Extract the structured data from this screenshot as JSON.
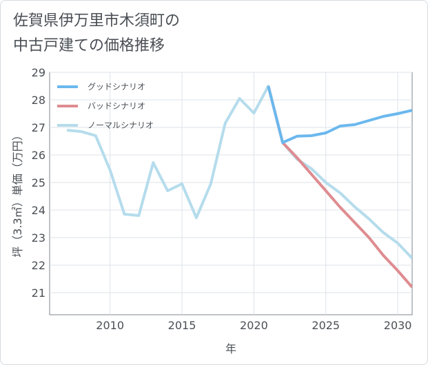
{
  "title_lines": [
    "佐賀県伊万里市木須町の",
    "中古戸建ての価格推移"
  ],
  "chart_data": {
    "type": "line",
    "title": "佐賀県伊万里市木須町の中古戸建ての価格推移",
    "xlabel": "年",
    "ylabel": "坪（3.3㎡）単価（万円）",
    "xlim": [
      2005.8,
      2031.0
    ],
    "ylim": [
      20.2,
      29.0
    ],
    "xticks": [
      2010,
      2015,
      2020,
      2025,
      2030
    ],
    "yticks": [
      21,
      22,
      23,
      24,
      25,
      26,
      27,
      28,
      29
    ],
    "legend_position": "top-left",
    "series": [
      {
        "name": "グッドシナリオ",
        "color": "#6bb8ee",
        "x": [
          2021,
          2022,
          2023,
          2024,
          2025,
          2026,
          2027,
          2028,
          2029,
          2030,
          2031
        ],
        "y": [
          28.5,
          26.45,
          26.68,
          26.7,
          26.8,
          27.05,
          27.1,
          27.25,
          27.4,
          27.5,
          27.62
        ]
      },
      {
        "name": "バッドシナリオ",
        "color": "#de8c90",
        "x": [
          2021,
          2022,
          2023,
          2024,
          2025,
          2026,
          2027,
          2028,
          2029,
          2030,
          2031
        ],
        "y": [
          28.5,
          26.45,
          25.9,
          25.3,
          24.7,
          24.1,
          23.55,
          23.0,
          22.35,
          21.8,
          21.2
        ]
      },
      {
        "name": "ノーマルシナリオ",
        "color": "#b5dcec",
        "x": [
          2007,
          2008,
          2009,
          2010,
          2011,
          2012,
          2013,
          2014,
          2015,
          2016,
          2017,
          2018,
          2019,
          2020,
          2021,
          2022,
          2023,
          2024,
          2025,
          2026,
          2027,
          2028,
          2029,
          2030,
          2031
        ],
        "y": [
          26.9,
          26.85,
          26.7,
          25.45,
          23.85,
          23.8,
          25.72,
          24.7,
          24.95,
          23.72,
          24.95,
          27.15,
          28.05,
          27.52,
          28.5,
          26.45,
          25.85,
          25.5,
          25.0,
          24.62,
          24.12,
          23.68,
          23.18,
          22.8,
          22.25
        ]
      }
    ]
  }
}
